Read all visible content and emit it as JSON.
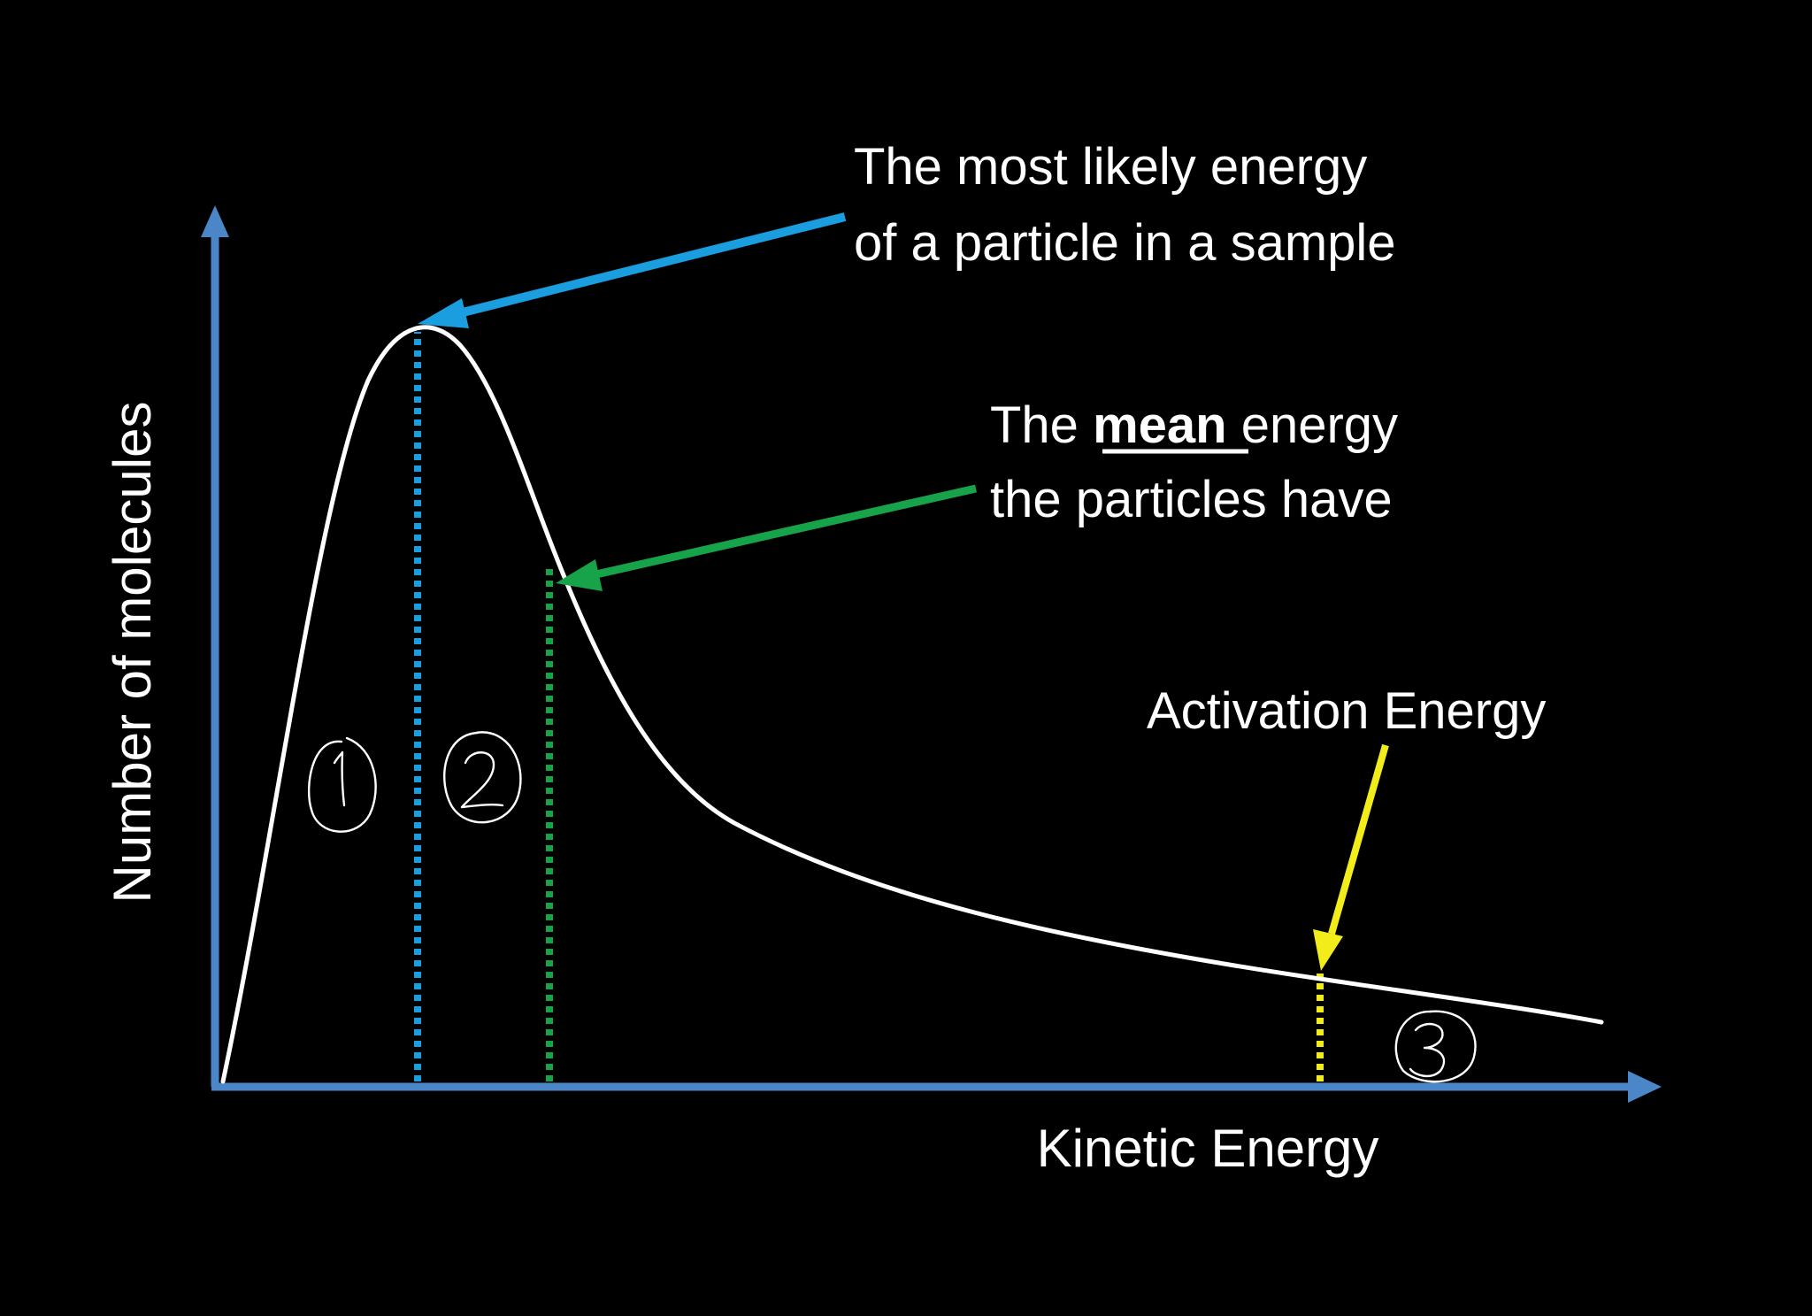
{
  "axes": {
    "y_label": "Number of molecules",
    "x_label": "Kinetic Energy",
    "axis_color": "#4a86c8"
  },
  "curve": {
    "name": "distribution curve",
    "color": "#ffffff"
  },
  "annotations": {
    "most_likely": {
      "line1": "The most likely energy",
      "line2": "of a particle in a sample",
      "arrow_color": "#1a9ee0",
      "marker_color": "#1a9ee0"
    },
    "mean": {
      "prefix": "The ",
      "emphasis": "mean",
      "suffix": " energy",
      "line2": "the particles have",
      "arrow_color": "#16a34a",
      "marker_color": "#16a34a"
    },
    "activation": {
      "label": "Activation Energy",
      "arrow_color": "#f2ec1a",
      "marker_color": "#f2ec1a"
    }
  },
  "handwritten_marks": {
    "region_1": "1",
    "region_2": "2",
    "region_3": "3",
    "color": "#ffffff"
  }
}
